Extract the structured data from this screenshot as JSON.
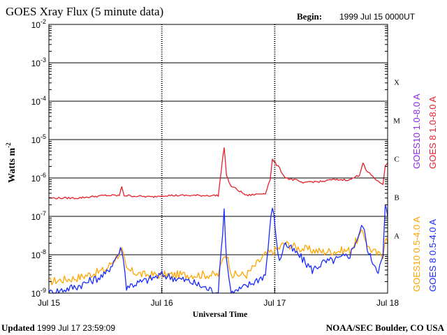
{
  "header": {
    "title": "GOES Xray Flux (5 minute data)",
    "begin_label": "Begin:",
    "begin_value": "1999 Jul 15 0000UT"
  },
  "footer": {
    "updated_label": "Updated",
    "updated_value": "1999 Jul 17 23:59:09",
    "credit": "NOAA/SEC Boulder, CO USA"
  },
  "colors": {
    "goes10_long": "#8a2be2",
    "goes8_long": "#e8202a",
    "goes10_short": "#ffa500",
    "goes8_short": "#1a2bff",
    "axis": "#000000"
  },
  "chart_data": {
    "type": "line",
    "title": "GOES Xray Flux (5 minute data)",
    "xlabel": "Universal Time",
    "ylabel": "Watts m^-2",
    "ylabel_base": "Watts m",
    "ylabel_exp": "-2",
    "y_scale": "log",
    "ylim": [
      1e-09,
      0.01
    ],
    "xlim": [
      "1999-07-15T00:00",
      "1999-07-18T00:00"
    ],
    "x_ticks": [
      {
        "date": "1999-07-15T00:00",
        "label": "Jul 15"
      },
      {
        "date": "1999-07-16T00:00",
        "label": "Jul 16"
      },
      {
        "date": "1999-07-17T00:00",
        "label": "Jul 17"
      },
      {
        "date": "1999-07-18T00:00",
        "label": "Jul 18"
      }
    ],
    "y_ticks": [
      {
        "value": 1e-09,
        "base": "10",
        "exp": "-9"
      },
      {
        "value": 1e-08,
        "base": "10",
        "exp": "-8"
      },
      {
        "value": 1e-07,
        "base": "10",
        "exp": "-7"
      },
      {
        "value": 1e-06,
        "base": "10",
        "exp": "-6"
      },
      {
        "value": 1e-05,
        "base": "10",
        "exp": "-5"
      },
      {
        "value": 0.0001,
        "base": "10",
        "exp": "-4"
      },
      {
        "value": 0.001,
        "base": "10",
        "exp": "-3"
      },
      {
        "value": 0.01,
        "base": "10",
        "exp": "-2"
      }
    ],
    "gridlines": [
      1e-08,
      1e-07,
      1e-06,
      1e-05,
      0.0001,
      0.001
    ],
    "flare_classes": [
      {
        "label": "A",
        "value": 1e-08
      },
      {
        "label": "B",
        "value": 1e-07
      },
      {
        "label": "C",
        "value": 1e-06
      },
      {
        "label": "M",
        "value": 1e-05
      },
      {
        "label": "X",
        "value": 0.0001
      }
    ],
    "legend": [
      {
        "text": "GOES10 1.0-8.0 A",
        "color": "#8a2be2"
      },
      {
        "text": "GOES 8 1.0-8.0 A",
        "color": "#e8202a"
      },
      {
        "text": "GOES10 0.5-4.0 A",
        "color": "#ffa500"
      },
      {
        "text": "GOES 8 0.5-4.0 A",
        "color": "#1a2bff"
      }
    ],
    "series": [
      {
        "name": "GOES 8 1.0-8.0 A",
        "color": "#e8202a",
        "x": [
          "1999-07-15T00:00",
          "1999-07-15T06:00",
          "1999-07-15T12:00",
          "1999-07-15T15:00",
          "1999-07-15T15:30",
          "1999-07-15T16:00",
          "1999-07-15T22:00",
          "1999-07-16T00:00",
          "1999-07-16T06:00",
          "1999-07-16T12:00",
          "1999-07-16T13:15",
          "1999-07-16T13:45",
          "1999-07-16T14:30",
          "1999-07-16T18:00",
          "1999-07-16T22:00",
          "1999-07-16T23:00",
          "1999-07-16T23:30",
          "1999-07-17T01:00",
          "1999-07-17T02:00",
          "1999-07-17T03:00",
          "1999-07-17T05:00",
          "1999-07-17T06:00",
          "1999-07-17T07:00",
          "1999-07-17T10:00",
          "1999-07-17T12:00",
          "1999-07-17T16:00",
          "1999-07-17T18:00",
          "1999-07-17T18:45",
          "1999-07-17T19:30",
          "1999-07-17T20:30",
          "1999-07-17T22:00",
          "1999-07-17T23:00",
          "1999-07-17T23:30",
          "1999-07-18T00:00"
        ],
        "values": [
          3e-07,
          3e-07,
          3.5e-07,
          3.5e-07,
          6e-07,
          3.5e-07,
          3.2e-07,
          3.5e-07,
          3.5e-07,
          3.5e-07,
          6.5e-06,
          1.2e-06,
          6.5e-07,
          3.5e-07,
          4e-07,
          9e-07,
          3e-06,
          1.8e-06,
          1.1e-06,
          9.5e-07,
          8.5e-07,
          7e-07,
          8e-07,
          8e-07,
          9e-07,
          9e-07,
          1.2e-06,
          2.5e-06,
          1.5e-06,
          1.2e-06,
          8e-07,
          7e-07,
          2e-06,
          2.5e-06
        ]
      },
      {
        "name": "GOES 8 0.5-4.0 A",
        "color": "#1a2bff",
        "x": [
          "1999-07-15T00:00",
          "1999-07-15T06:00",
          "1999-07-15T12:00",
          "1999-07-15T15:30",
          "1999-07-15T16:30",
          "1999-07-15T20:00",
          "1999-07-16T00:00",
          "1999-07-16T06:00",
          "1999-07-16T12:00",
          "1999-07-16T13:15",
          "1999-07-16T13:45",
          "1999-07-16T14:30",
          "1999-07-16T15:00",
          "1999-07-16T18:00",
          "1999-07-16T22:00",
          "1999-07-16T23:30",
          "1999-07-17T01:00",
          "1999-07-17T02:00",
          "1999-07-17T05:00",
          "1999-07-17T08:00",
          "1999-07-17T10:00",
          "1999-07-17T14:00",
          "1999-07-17T16:00",
          "1999-07-17T18:45",
          "1999-07-17T20:00",
          "1999-07-17T22:00",
          "1999-07-17T23:00",
          "1999-07-17T23:30",
          "1999-07-18T00:00"
        ],
        "values": [
          1e-09,
          1.5e-09,
          3e-09,
          1.5e-08,
          1.5e-09,
          2e-09,
          3e-09,
          2e-09,
          1e-09,
          1.5e-07,
          8e-09,
          1.5e-09,
          1e-09,
          1.5e-09,
          3e-09,
          2e-07,
          6e-09,
          2e-08,
          1e-08,
          4e-09,
          6e-09,
          8e-09,
          1e-08,
          6e-08,
          1e-08,
          4e-09,
          8e-09,
          2e-07,
          1e-07
        ]
      },
      {
        "name": "GOES10 0.5-4.0 A",
        "color": "#ffa500",
        "x": [
          "1999-07-15T00:00",
          "1999-07-15T06:00",
          "1999-07-15T12:00",
          "1999-07-15T15:30",
          "1999-07-15T16:30",
          "1999-07-15T20:00",
          "1999-07-16T00:00",
          "1999-07-16T06:00",
          "1999-07-16T12:00",
          "1999-07-16T13:15",
          "1999-07-16T13:45",
          "1999-07-16T15:00",
          "1999-07-16T18:00",
          "1999-07-16T22:00",
          "1999-07-16T23:30",
          "1999-07-17T01:00",
          "1999-07-17T02:00",
          "1999-07-17T05:00",
          "1999-07-17T10:00",
          "1999-07-17T16:00",
          "1999-07-17T18:45",
          "1999-07-17T20:00",
          "1999-07-17T22:00",
          "1999-07-17T23:00",
          "1999-07-17T23:30",
          "1999-07-18T00:00"
        ],
        "values": [
          2e-09,
          2.5e-09,
          4e-09,
          1.3e-08,
          4e-09,
          3e-09,
          3e-09,
          3e-09,
          3e-09,
          1e-08,
          1e-08,
          3e-09,
          3e-09,
          1e-08,
          1.2e-08,
          1.5e-08,
          2e-08,
          1.5e-08,
          1.2e-08,
          1.3e-08,
          4e-08,
          1.5e-08,
          1e-08,
          1e-08,
          3e-08,
          2e-08
        ]
      }
    ]
  }
}
